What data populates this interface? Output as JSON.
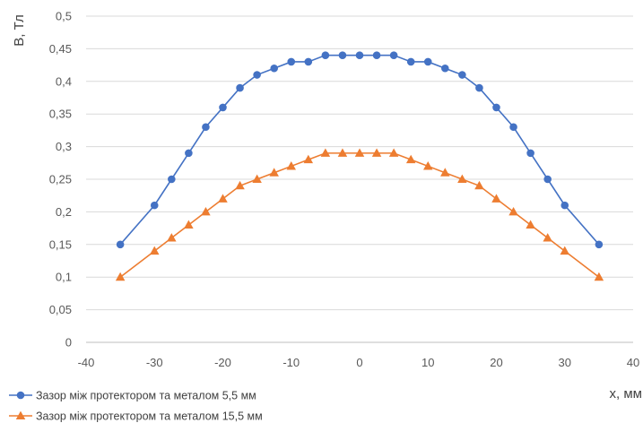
{
  "chart_data": {
    "type": "line",
    "title": "",
    "xlabel": "x, мм",
    "ylabel": "B, Тл",
    "xlim": [
      -40,
      40
    ],
    "ylim": [
      0,
      0.5
    ],
    "xticks": [
      -40,
      -30,
      -20,
      -10,
      0,
      10,
      20,
      30,
      40
    ],
    "yticks": [
      0,
      0.05,
      0.1,
      0.15,
      0.2,
      0.25,
      0.3,
      0.35,
      0.4,
      0.45,
      0.5
    ],
    "xtick_labels": [
      "-40",
      "-30",
      "-20",
      "-10",
      "0",
      "10",
      "20",
      "30",
      "40"
    ],
    "ytick_labels": [
      "0",
      "0,05",
      "0,1",
      "0,15",
      "0,2",
      "0,25",
      "0,3",
      "0,35",
      "0,4",
      "0,45",
      "0,5"
    ],
    "grid": "horizontal",
    "legend_position": "bottom-left",
    "series": [
      {
        "name": "Зазор між протектором та металом 5,5 мм",
        "color": "#4472c4",
        "marker": "circle",
        "x": [
          -35,
          -30,
          -27.5,
          -25,
          -22.5,
          -20,
          -17.5,
          -15,
          -12.5,
          -10,
          -7.5,
          -5,
          -2.5,
          0,
          2.5,
          5,
          7.5,
          10,
          12.5,
          15,
          17.5,
          20,
          22.5,
          25,
          27.5,
          30,
          35
        ],
        "y": [
          0.15,
          0.21,
          0.25,
          0.29,
          0.33,
          0.36,
          0.39,
          0.41,
          0.42,
          0.43,
          0.43,
          0.44,
          0.44,
          0.44,
          0.44,
          0.44,
          0.43,
          0.43,
          0.42,
          0.41,
          0.39,
          0.36,
          0.33,
          0.29,
          0.25,
          0.21,
          0.15
        ]
      },
      {
        "name": "Зазор між протектором та металом 15,5 мм",
        "color": "#ed7d31",
        "marker": "triangle",
        "x": [
          -35,
          -30,
          -27.5,
          -25,
          -22.5,
          -20,
          -17.5,
          -15,
          -12.5,
          -10,
          -7.5,
          -5,
          -2.5,
          0,
          2.5,
          5,
          7.5,
          10,
          12.5,
          15,
          17.5,
          20,
          22.5,
          25,
          27.5,
          30,
          35
        ],
        "y": [
          0.1,
          0.14,
          0.16,
          0.18,
          0.2,
          0.22,
          0.24,
          0.25,
          0.26,
          0.27,
          0.28,
          0.29,
          0.29,
          0.29,
          0.29,
          0.29,
          0.28,
          0.27,
          0.26,
          0.25,
          0.24,
          0.22,
          0.2,
          0.18,
          0.16,
          0.14,
          0.1
        ]
      }
    ]
  }
}
